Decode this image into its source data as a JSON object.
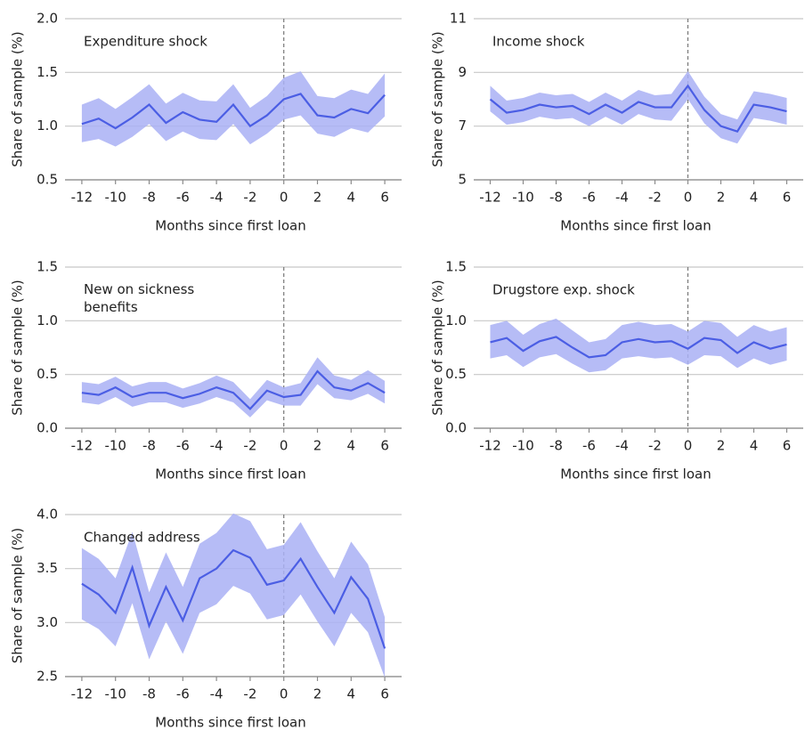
{
  "chart_data": [
    {
      "type": "line",
      "title": "Expenditure shock",
      "xlabel": "Months since first loan",
      "ylabel": "Share of sample (%)",
      "x": [
        -12,
        -11,
        -10,
        -9,
        -8,
        -7,
        -6,
        -5,
        -4,
        -3,
        -2,
        -1,
        0,
        1,
        2,
        3,
        4,
        5,
        6
      ],
      "xlim": [
        -13,
        7
      ],
      "xticks": [
        -12,
        -10,
        -8,
        -6,
        -4,
        -2,
        0,
        2,
        4,
        6
      ],
      "ylim": [
        0.5,
        2.0
      ],
      "yticks": [
        {
          "value": 0.5,
          "label": "0.5"
        },
        {
          "value": 1,
          "label": "1.0"
        },
        {
          "value": 1.5,
          "label": "1.5"
        },
        {
          "value": 2,
          "label": "2.0"
        }
      ],
      "grid": true,
      "vline": 0,
      "series": [
        {
          "color": "#4b5ee4",
          "band_color": "#a9b0f5",
          "values": [
            1.02,
            1.07,
            0.98,
            1.08,
            1.2,
            1.03,
            1.13,
            1.06,
            1.04,
            1.2,
            1.0,
            1.1,
            1.25,
            1.3,
            1.1,
            1.08,
            1.16,
            1.12,
            1.29
          ],
          "upper": [
            1.2,
            1.26,
            1.16,
            1.27,
            1.39,
            1.21,
            1.31,
            1.24,
            1.23,
            1.39,
            1.17,
            1.28,
            1.45,
            1.51,
            1.28,
            1.26,
            1.34,
            1.3,
            1.49
          ],
          "lower": [
            0.85,
            0.88,
            0.81,
            0.9,
            1.02,
            0.86,
            0.95,
            0.88,
            0.87,
            1.02,
            0.83,
            0.93,
            1.06,
            1.1,
            0.93,
            0.9,
            0.98,
            0.94,
            1.09
          ]
        }
      ]
    },
    {
      "type": "line",
      "title": "Income shock",
      "xlabel": "Months since first loan",
      "ylabel": "Share of sample (%)",
      "x": [
        -12,
        -11,
        -10,
        -9,
        -8,
        -7,
        -6,
        -5,
        -4,
        -3,
        -2,
        -1,
        0,
        1,
        2,
        3,
        4,
        5,
        6
      ],
      "xlim": [
        -13,
        7
      ],
      "xticks": [
        -12,
        -10,
        -8,
        -6,
        -4,
        -2,
        0,
        2,
        4,
        6
      ],
      "ylim": [
        5,
        11
      ],
      "yticks": [
        5,
        7,
        9,
        11
      ],
      "grid": true,
      "vline": 0,
      "series": [
        {
          "color": "#4b5ee4",
          "band_color": "#a9b0f5",
          "values": [
            8.0,
            7.5,
            7.6,
            7.8,
            7.7,
            7.75,
            7.45,
            7.8,
            7.5,
            7.9,
            7.7,
            7.7,
            8.5,
            7.6,
            7.0,
            6.8,
            7.8,
            7.7,
            7.55
          ],
          "upper": [
            8.5,
            7.95,
            8.05,
            8.25,
            8.15,
            8.2,
            7.9,
            8.25,
            7.95,
            8.35,
            8.15,
            8.2,
            9.05,
            8.1,
            7.45,
            7.25,
            8.3,
            8.2,
            8.05
          ],
          "lower": [
            7.55,
            7.05,
            7.15,
            7.35,
            7.25,
            7.3,
            7.0,
            7.35,
            7.05,
            7.45,
            7.25,
            7.2,
            8.0,
            7.1,
            6.55,
            6.35,
            7.3,
            7.2,
            7.05
          ]
        }
      ]
    },
    {
      "type": "line",
      "title": [
        "New on sickness",
        "benefits"
      ],
      "xlabel": "Months since first loan",
      "ylabel": "Share of sample (%)",
      "x": [
        -12,
        -11,
        -10,
        -9,
        -8,
        -7,
        -6,
        -5,
        -4,
        -3,
        -2,
        -1,
        0,
        1,
        2,
        3,
        4,
        5,
        6
      ],
      "xlim": [
        -13,
        7
      ],
      "xticks": [
        -12,
        -10,
        -8,
        -6,
        -4,
        -2,
        0,
        2,
        4,
        6
      ],
      "ylim": [
        0,
        1.5
      ],
      "yticks": [
        {
          "value": 0,
          "label": "0.0"
        },
        0.5,
        {
          "value": 1,
          "label": "1.0"
        },
        1.5
      ],
      "grid": true,
      "vline": 0,
      "series": [
        {
          "color": "#4b5ee4",
          "band_color": "#a9b0f5",
          "values": [
            0.33,
            0.31,
            0.38,
            0.29,
            0.33,
            0.33,
            0.28,
            0.32,
            0.38,
            0.33,
            0.18,
            0.35,
            0.29,
            0.31,
            0.53,
            0.38,
            0.35,
            0.42,
            0.33
          ],
          "upper": [
            0.43,
            0.41,
            0.48,
            0.39,
            0.43,
            0.43,
            0.37,
            0.42,
            0.49,
            0.43,
            0.27,
            0.45,
            0.38,
            0.42,
            0.66,
            0.49,
            0.45,
            0.54,
            0.44
          ],
          "lower": [
            0.24,
            0.22,
            0.29,
            0.2,
            0.24,
            0.24,
            0.19,
            0.23,
            0.29,
            0.24,
            0.1,
            0.26,
            0.21,
            0.21,
            0.41,
            0.28,
            0.26,
            0.32,
            0.23
          ]
        }
      ]
    },
    {
      "type": "line",
      "title": "Drugstore exp. shock",
      "xlabel": "Months since first loan",
      "ylabel": "Share of sample (%)",
      "x": [
        -12,
        -11,
        -10,
        -9,
        -8,
        -7,
        -6,
        -5,
        -4,
        -3,
        -2,
        -1,
        0,
        1,
        2,
        3,
        4,
        5,
        6
      ],
      "xlim": [
        -13,
        7
      ],
      "xticks": [
        -12,
        -10,
        -8,
        -6,
        -4,
        -2,
        0,
        2,
        4,
        6
      ],
      "ylim": [
        0,
        1.5
      ],
      "yticks": [
        {
          "value": 0,
          "label": "0.0"
        },
        0.5,
        {
          "value": 1,
          "label": "1.0"
        },
        1.5
      ],
      "grid": true,
      "vline": 0,
      "series": [
        {
          "color": "#4b5ee4",
          "band_color": "#a9b0f5",
          "values": [
            0.8,
            0.84,
            0.72,
            0.81,
            0.85,
            0.75,
            0.66,
            0.68,
            0.8,
            0.83,
            0.8,
            0.81,
            0.74,
            0.84,
            0.82,
            0.7,
            0.8,
            0.74,
            0.78
          ],
          "upper": [
            0.96,
            1.0,
            0.87,
            0.97,
            1.02,
            0.91,
            0.8,
            0.83,
            0.96,
            0.99,
            0.96,
            0.97,
            0.9,
            1.0,
            0.98,
            0.85,
            0.96,
            0.9,
            0.94
          ],
          "lower": [
            0.65,
            0.68,
            0.57,
            0.66,
            0.69,
            0.6,
            0.52,
            0.54,
            0.65,
            0.67,
            0.65,
            0.66,
            0.59,
            0.68,
            0.67,
            0.56,
            0.65,
            0.59,
            0.63
          ]
        }
      ]
    },
    {
      "type": "line",
      "title": "Changed address",
      "xlabel": "Months since first loan",
      "ylabel": "Share of sample (%)",
      "x": [
        -12,
        -11,
        -10,
        -9,
        -8,
        -7,
        -6,
        -5,
        -4,
        -3,
        -2,
        -1,
        0,
        1,
        2,
        3,
        4,
        5,
        6
      ],
      "xlim": [
        -13,
        7
      ],
      "xticks": [
        -12,
        -10,
        -8,
        -6,
        -4,
        -2,
        0,
        2,
        4,
        6
      ],
      "ylim": [
        2.5,
        4.0
      ],
      "yticks": [
        {
          "value": 2.5,
          "label": "2.5"
        },
        {
          "value": 3,
          "label": "3.0"
        },
        {
          "value": 3.5,
          "label": "3.5"
        },
        {
          "value": 4,
          "label": "4.0"
        }
      ],
      "grid": true,
      "vline": 0,
      "series": [
        {
          "color": "#4b5ee4",
          "band_color": "#a9b0f5",
          "values": [
            3.36,
            3.26,
            3.09,
            3.51,
            2.97,
            3.33,
            3.02,
            3.41,
            3.5,
            3.67,
            3.6,
            3.35,
            3.39,
            3.59,
            3.33,
            3.09,
            3.42,
            3.22,
            2.76
          ],
          "upper": [
            3.69,
            3.59,
            3.41,
            3.84,
            3.28,
            3.65,
            3.33,
            3.73,
            3.83,
            4.01,
            3.94,
            3.68,
            3.72,
            3.93,
            3.66,
            3.41,
            3.75,
            3.54,
            3.05
          ],
          "lower": [
            3.03,
            2.94,
            2.78,
            3.18,
            2.66,
            3.01,
            2.71,
            3.09,
            3.17,
            3.34,
            3.27,
            3.03,
            3.07,
            3.26,
            3.01,
            2.78,
            3.09,
            2.91,
            2.49
          ]
        }
      ]
    }
  ]
}
